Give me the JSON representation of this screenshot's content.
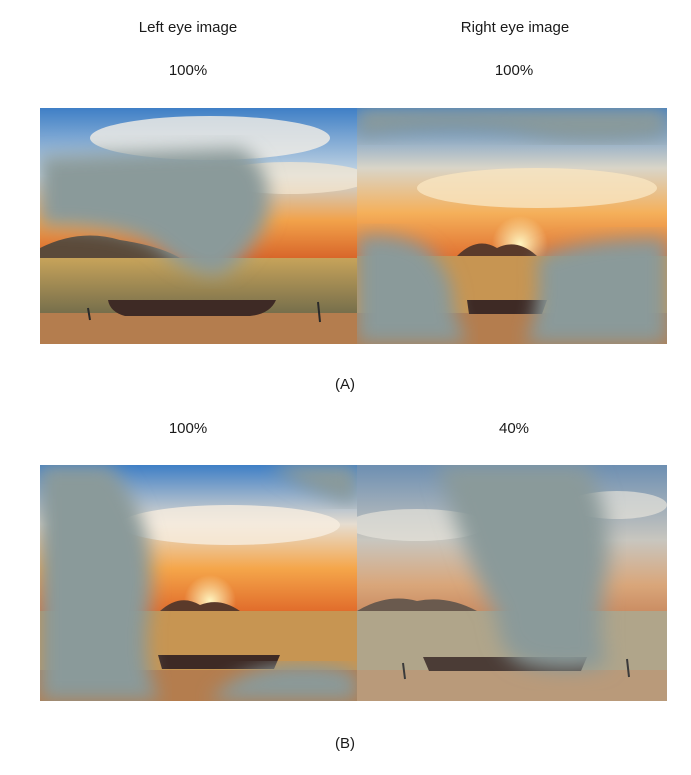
{
  "figure": {
    "columns": {
      "left": "Left eye image",
      "right": "Right eye image"
    },
    "rows": [
      {
        "id": "A",
        "caption": "(A)",
        "left_contrast": "100%",
        "right_contrast": "100%"
      },
      {
        "id": "B",
        "caption": "(B)",
        "left_contrast": "100%",
        "right_contrast": "40%"
      }
    ]
  },
  "colors": {
    "occluder": "#8a9a9a",
    "sky_top": "#3f7fc6",
    "sun": "#fff6c0"
  }
}
